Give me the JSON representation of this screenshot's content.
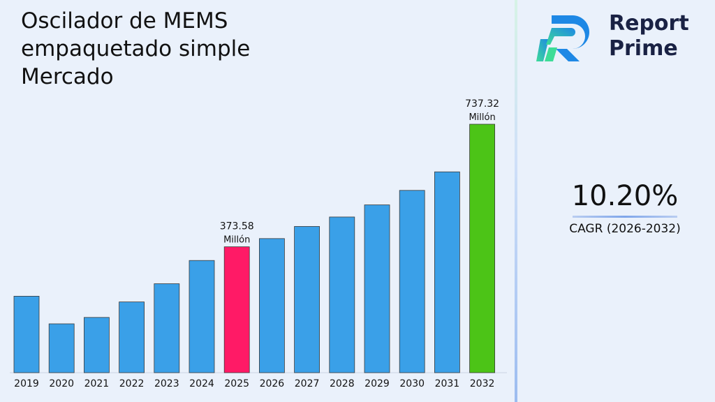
{
  "title_lines": [
    "Oscilador de MEMS",
    "empaquetado simple",
    "Mercado"
  ],
  "brand": {
    "line1": "Report",
    "line2": "Prime"
  },
  "cagr": {
    "value": "10.20%",
    "label": "CAGR (2026-2032)"
  },
  "colors": {
    "default_bar": "#3aa0e8",
    "highlight_2025": "#ff1a66",
    "highlight_2032": "#4cc417"
  },
  "chart_data": {
    "type": "bar",
    "categories": [
      "2019",
      "2020",
      "2021",
      "2022",
      "2023",
      "2024",
      "2025",
      "2026",
      "2027",
      "2028",
      "2029",
      "2030",
      "2031",
      "2032"
    ],
    "values": [
      227,
      145,
      164,
      210,
      264,
      333,
      373.58,
      398,
      434,
      462,
      498,
      541,
      596,
      737.32
    ],
    "data_labels": [
      {
        "category": "2025",
        "value": "373.58",
        "unit": "Millón"
      },
      {
        "category": "2032",
        "value": "737.32",
        "unit": "Millón"
      }
    ],
    "ylim": [
      0,
      737.32
    ],
    "grid": false,
    "legend": "none"
  }
}
